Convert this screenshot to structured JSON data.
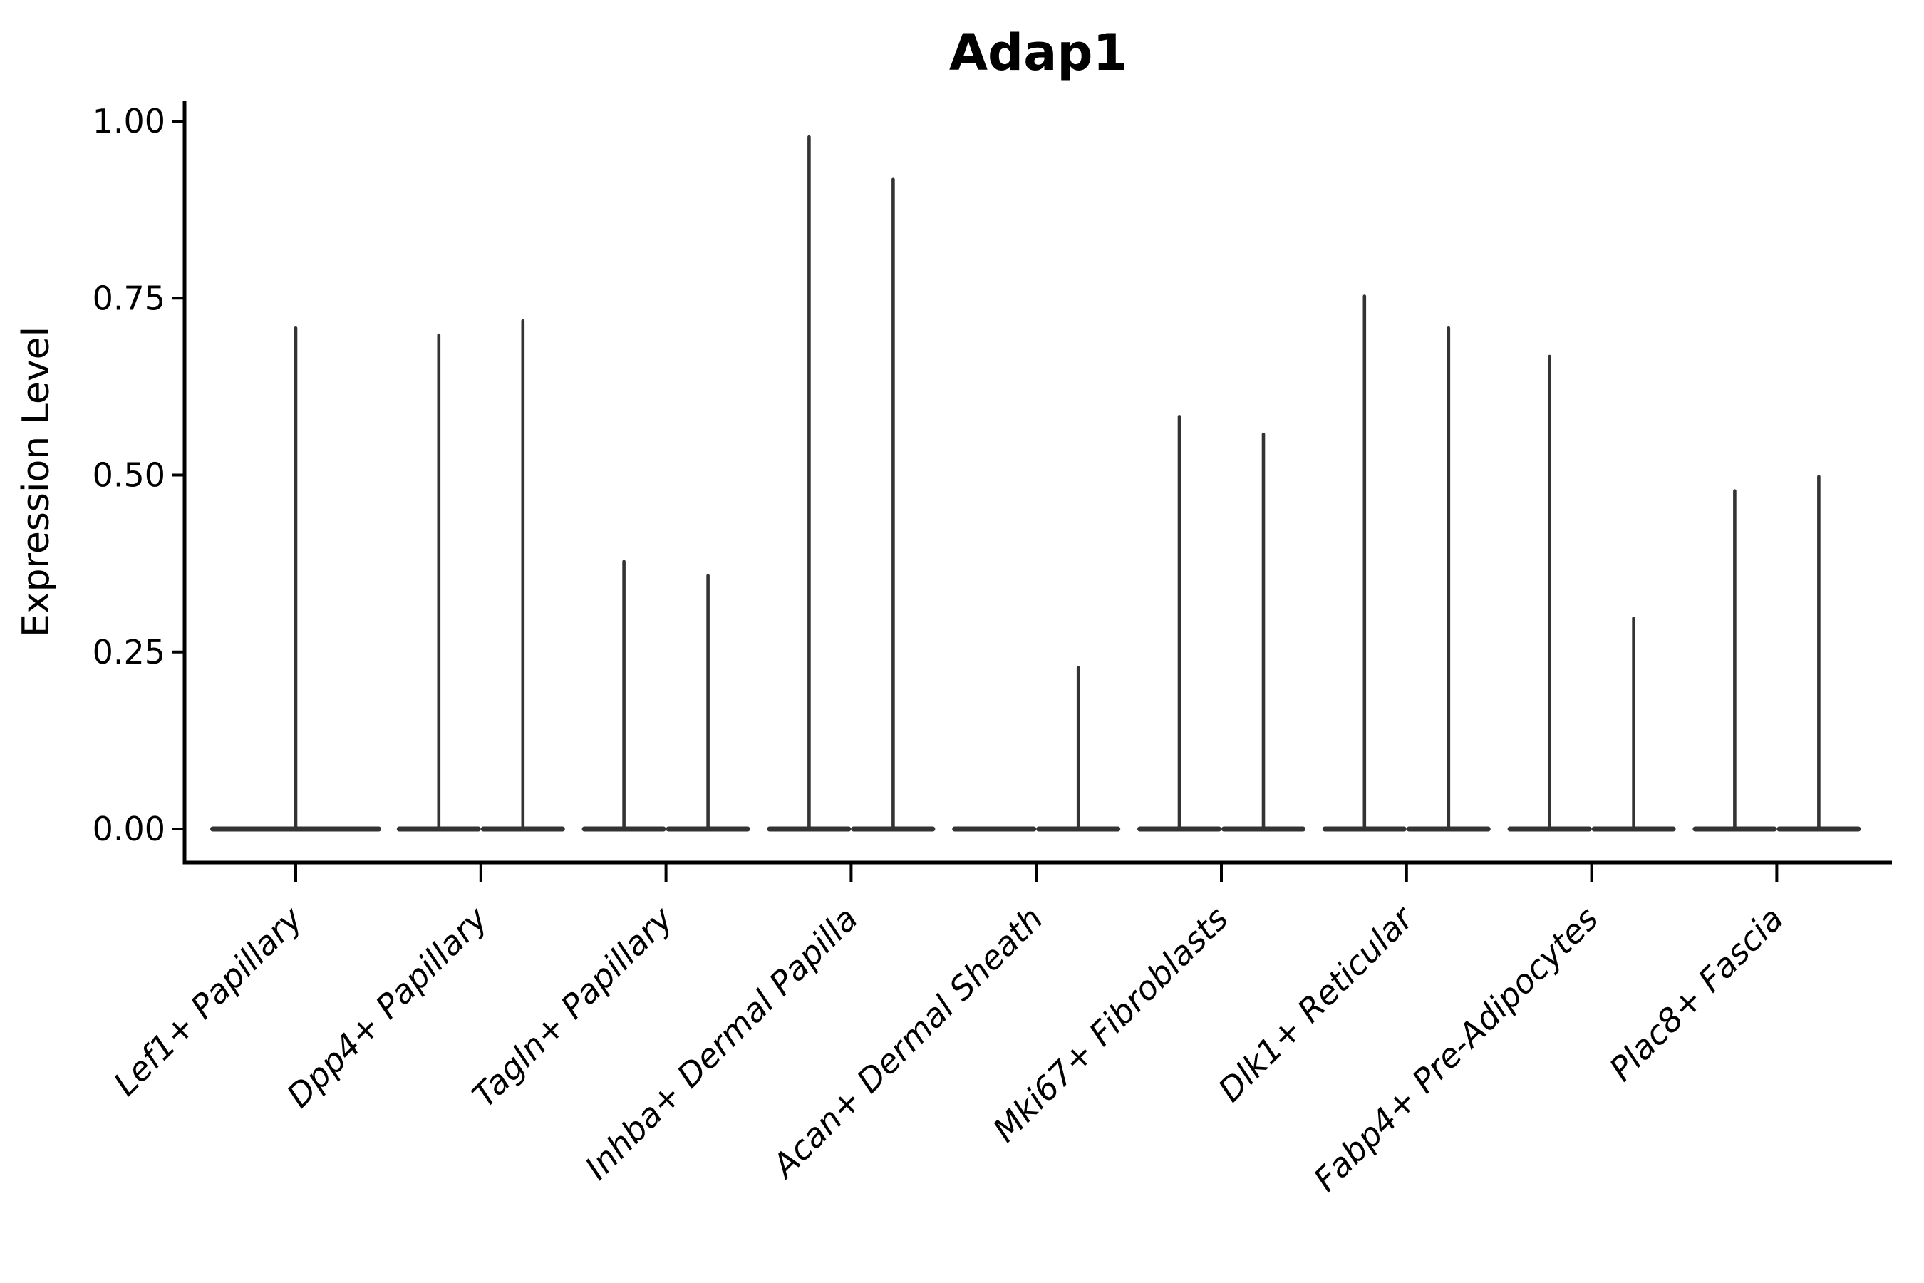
{
  "chart_data": {
    "type": "violin",
    "title": "Adap1",
    "ylabel": "Expression Level",
    "xlabel": "",
    "ylim": [
      0.0,
      1.0
    ],
    "yticks": [
      0.0,
      0.25,
      0.5,
      0.75,
      1.0
    ],
    "ytick_labels": [
      "0.00",
      "0.25",
      "0.50",
      "0.75",
      "1.00"
    ],
    "grid": false,
    "legend_position": "none",
    "categories": [
      "Lef1+ Papillary",
      "Dpp4+ Papillary",
      "Tagln+ Papillary",
      "Inhba+ Dermal Papilla",
      "Acan+ Dermal Sheath",
      "Mki67+ Fibroblasts",
      "Dlk1+ Reticular",
      "Fabp4+ Pre-Adipocytes",
      "Plac8+ Fascia"
    ],
    "violin_maxima": [
      [
        0.71
      ],
      [
        0.7,
        0.72
      ],
      [
        0.38,
        0.36
      ],
      [
        0.98,
        0.92
      ],
      [
        0.0,
        0.23
      ],
      [
        0.585,
        0.56
      ],
      [
        0.755,
        0.71
      ],
      [
        0.67,
        0.3
      ],
      [
        0.48,
        0.5
      ]
    ],
    "violin_description": "Each category shows a violin collapsed to a flat base at expression 0 with a thin vertical spike up to the maximum expression; categories with two groups show two half-width violins side by side, single-group categories show one full-width centered violin.",
    "colors": {
      "violin": "#333333",
      "axis": "#000000",
      "background": "#ffffff"
    }
  }
}
